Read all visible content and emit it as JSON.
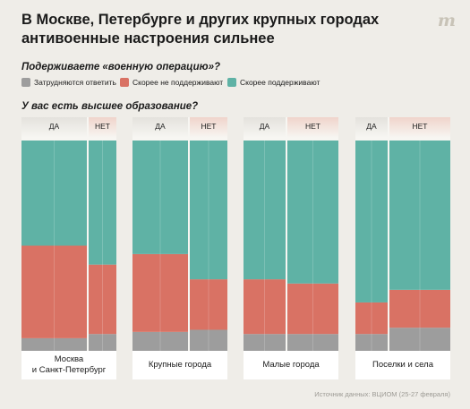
{
  "title": "В Москве, Петербурге и других крупных городах антивоенные настроения сильнее",
  "question1": "Подерживаете «военную операцию»?",
  "question2": "У вас есть высшее образование?",
  "legend": [
    {
      "label": "Затрудняются ответить",
      "color": "#9d9d9d"
    },
    {
      "label": "Скорее не поддерживают",
      "color": "#d97264"
    },
    {
      "label": "Скорее поддерживают",
      "color": "#5fb2a5"
    }
  ],
  "answer_yes": "ДА",
  "answer_no": "НЕТ",
  "source": "Источник данных: ВЦИОМ (25-27 февраля)",
  "chart_data": {
    "type": "bar",
    "stacked": true,
    "variable_width": true,
    "groups": [
      {
        "category": "Москва и Санкт-Петербург",
        "label_line1": "Москва",
        "label_line2": "и Санкт-Петербург",
        "yes_share": 0.7,
        "no_share": 0.3,
        "yes": {
          "undecided": 6,
          "not_support": 44,
          "support": 50
        },
        "no": {
          "undecided": 8,
          "not_support": 33,
          "support": 59
        }
      },
      {
        "category": "Крупные города",
        "label_line1": "Крупные города",
        "label_line2": "",
        "yes_share": 0.6,
        "no_share": 0.4,
        "yes": {
          "undecided": 9,
          "not_support": 37,
          "support": 54
        },
        "no": {
          "undecided": 10,
          "not_support": 24,
          "support": 66
        }
      },
      {
        "category": "Малые города",
        "label_line1": "Малые города",
        "label_line2": "",
        "yes_share": 0.45,
        "no_share": 0.55,
        "yes": {
          "undecided": 8,
          "not_support": 26,
          "support": 66
        },
        "no": {
          "undecided": 8,
          "not_support": 24,
          "support": 68
        }
      },
      {
        "category": "Поселки и села",
        "label_line1": "Поселки и села",
        "label_line2": "",
        "yes_share": 0.35,
        "no_share": 0.65,
        "yes": {
          "undecided": 8,
          "not_support": 15,
          "support": 77
        },
        "no": {
          "undecided": 11,
          "not_support": 18,
          "support": 71
        }
      }
    ],
    "colors": {
      "undecided": "#9d9d9d",
      "not_support": "#d97264",
      "support": "#5fb2a5"
    },
    "ylim": [
      0,
      100
    ]
  }
}
